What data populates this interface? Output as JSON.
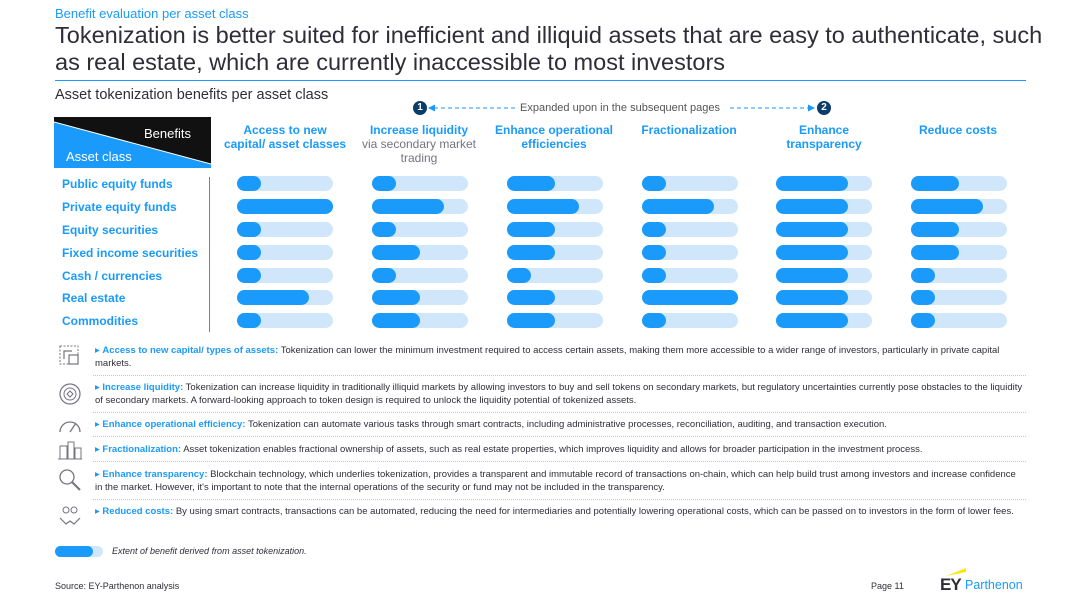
{
  "kicker": "Benefit evaluation per asset class",
  "headline": "Tokenization is better suited for inefficient and illiquid assets that are easy to authenticate, such as real estate, which are currently inaccessible to most investors",
  "subtitle": "Asset tokenization benefits per asset class",
  "expanded_note": "Expanded upon in the subsequent pages",
  "markers": [
    "1",
    "2"
  ],
  "corner": {
    "benefits": "Benefits",
    "asset_class": "Asset class"
  },
  "colors": {
    "accent": "#1a9afa",
    "track": "#cfe6fb",
    "dark": "#2e2e38",
    "navy": "#0b3d6b",
    "ey_yellow": "#ffe600"
  },
  "chart_data": {
    "type": "table",
    "value_scale": [
      0,
      1
    ],
    "columns": [
      {
        "title": "Access to new capital/ asset classes",
        "sub": ""
      },
      {
        "title": "Increase liquidity",
        "sub": "via secondary market trading"
      },
      {
        "title": "Enhance operational efficiencies",
        "sub": ""
      },
      {
        "title": "Fractionalization",
        "sub": ""
      },
      {
        "title": "Enhance transparency",
        "sub": ""
      },
      {
        "title": "Reduce costs",
        "sub": ""
      }
    ],
    "rows": [
      {
        "label": "Public equity funds",
        "values": [
          0.25,
          0.25,
          0.5,
          0.25,
          0.75,
          0.5
        ]
      },
      {
        "label": "Private equity funds",
        "values": [
          1.0,
          0.75,
          0.75,
          0.75,
          0.75,
          0.75
        ]
      },
      {
        "label": "Equity securities",
        "values": [
          0.25,
          0.25,
          0.5,
          0.25,
          0.75,
          0.5
        ]
      },
      {
        "label": "Fixed income securities",
        "values": [
          0.25,
          0.5,
          0.5,
          0.25,
          0.75,
          0.5
        ]
      },
      {
        "label": "Cash / currencies",
        "values": [
          0.25,
          0.25,
          0.25,
          0.25,
          0.75,
          0.25
        ]
      },
      {
        "label": "Real estate",
        "values": [
          0.75,
          0.5,
          0.5,
          1.0,
          0.75,
          0.25
        ]
      },
      {
        "label": "Commodities",
        "values": [
          0.25,
          0.5,
          0.5,
          0.25,
          0.75,
          0.25
        ]
      }
    ]
  },
  "descriptions": [
    {
      "icon": "capital-icon",
      "title": "Access to new capital/ types of assets:",
      "text": "Tokenization can lower the minimum investment required to access certain assets, making them more accessible to a wider range of investors, particularly in private capital markets."
    },
    {
      "icon": "liquidity-icon",
      "title": "Increase liquidity:",
      "text": "Tokenization can increase liquidity in traditionally illiquid markets by allowing investors to buy and sell tokens on secondary markets, but regulatory uncertainties currently pose obstacles to the liquidity of secondary markets. A forward-looking approach to token design is required to unlock the liquidity potential of tokenized assets."
    },
    {
      "icon": "gauge-icon",
      "title": "Enhance operational efficiency:",
      "text": "Tokenization can automate various tasks through smart contracts, including administrative processes, reconciliation, auditing, and transaction execution."
    },
    {
      "icon": "buildings-icon",
      "title": "Fractionalization:",
      "text": "Asset tokenization enables fractional ownership of assets, such as real estate properties, which improves liquidity and allows for broader participation in the investment process."
    },
    {
      "icon": "magnifier-icon",
      "title": "Enhance transparency:",
      "text": "Blockchain technology, which underlies tokenization, provides a transparent and immutable record of transactions on-chain, which can help build trust among investors and increase confidence in the market. However, it's important to note that the internal operations of the security or fund may not be included in the transparency."
    },
    {
      "icon": "hand-coins-icon",
      "title": "Reduced costs:",
      "text": "By using smart contracts, transactions can be automated, reducing the need for intermediaries and potentially lowering operational costs, which can be passed on to investors in the form of lower fees."
    }
  ],
  "legend_text": "Extent of benefit derived from asset tokenization.",
  "source": "Source: EY-Parthenon analysis",
  "page": "Page 11",
  "logo": {
    "mark": "EY",
    "name": "Parthenon"
  }
}
